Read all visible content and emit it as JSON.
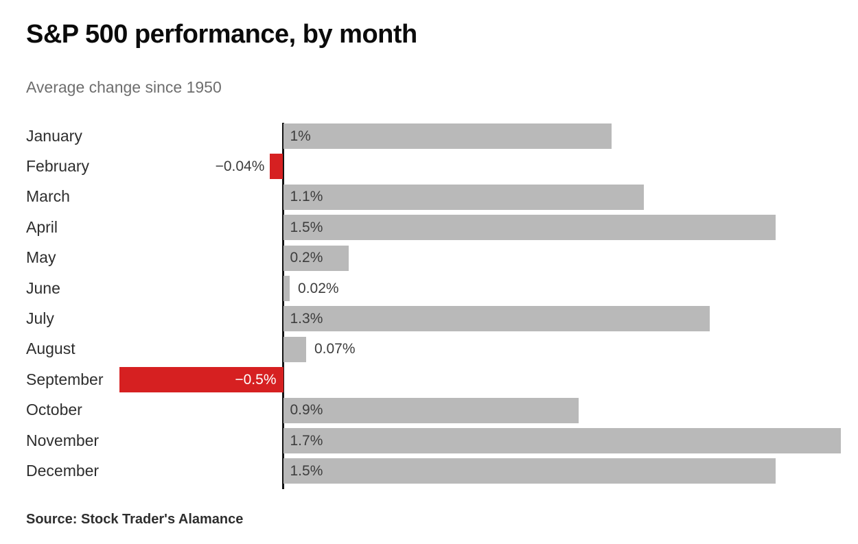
{
  "chart_data": {
    "type": "bar",
    "orientation": "horizontal",
    "title": "S&P 500 performance, by month",
    "subtitle": "Average change since 1950",
    "source": "Source: Stock Trader's Alamance",
    "xlabel": "",
    "ylabel": "",
    "xlim": [
      -0.55,
      1.75
    ],
    "grid": false,
    "legend": false,
    "colors": {
      "positive_bar": "#b9b9b9",
      "negative_bar": "#d62021",
      "axis": "#141414",
      "label_dark": "#3d3d3d",
      "label_white": "#ffffff"
    },
    "categories": [
      "January",
      "February",
      "March",
      "April",
      "May",
      "June",
      "July",
      "August",
      "September",
      "October",
      "November",
      "December"
    ],
    "values": [
      1.0,
      -0.04,
      1.1,
      1.5,
      0.2,
      0.02,
      1.3,
      0.07,
      -0.5,
      0.9,
      1.7,
      1.5
    ],
    "value_labels": [
      "1%",
      "−0.04%",
      "1.1%",
      "1.5%",
      "0.2%",
      "0.02%",
      "1.3%",
      "0.07%",
      "−0.5%",
      "0.9%",
      "1.7%",
      "1.5%"
    ],
    "label_positions": [
      "inside-left",
      "outside-left",
      "inside-left",
      "inside-left",
      "inside-left",
      "outside-right",
      "inside-left",
      "outside-right",
      "inside-right",
      "inside-left",
      "inside-left",
      "inside-left"
    ]
  }
}
